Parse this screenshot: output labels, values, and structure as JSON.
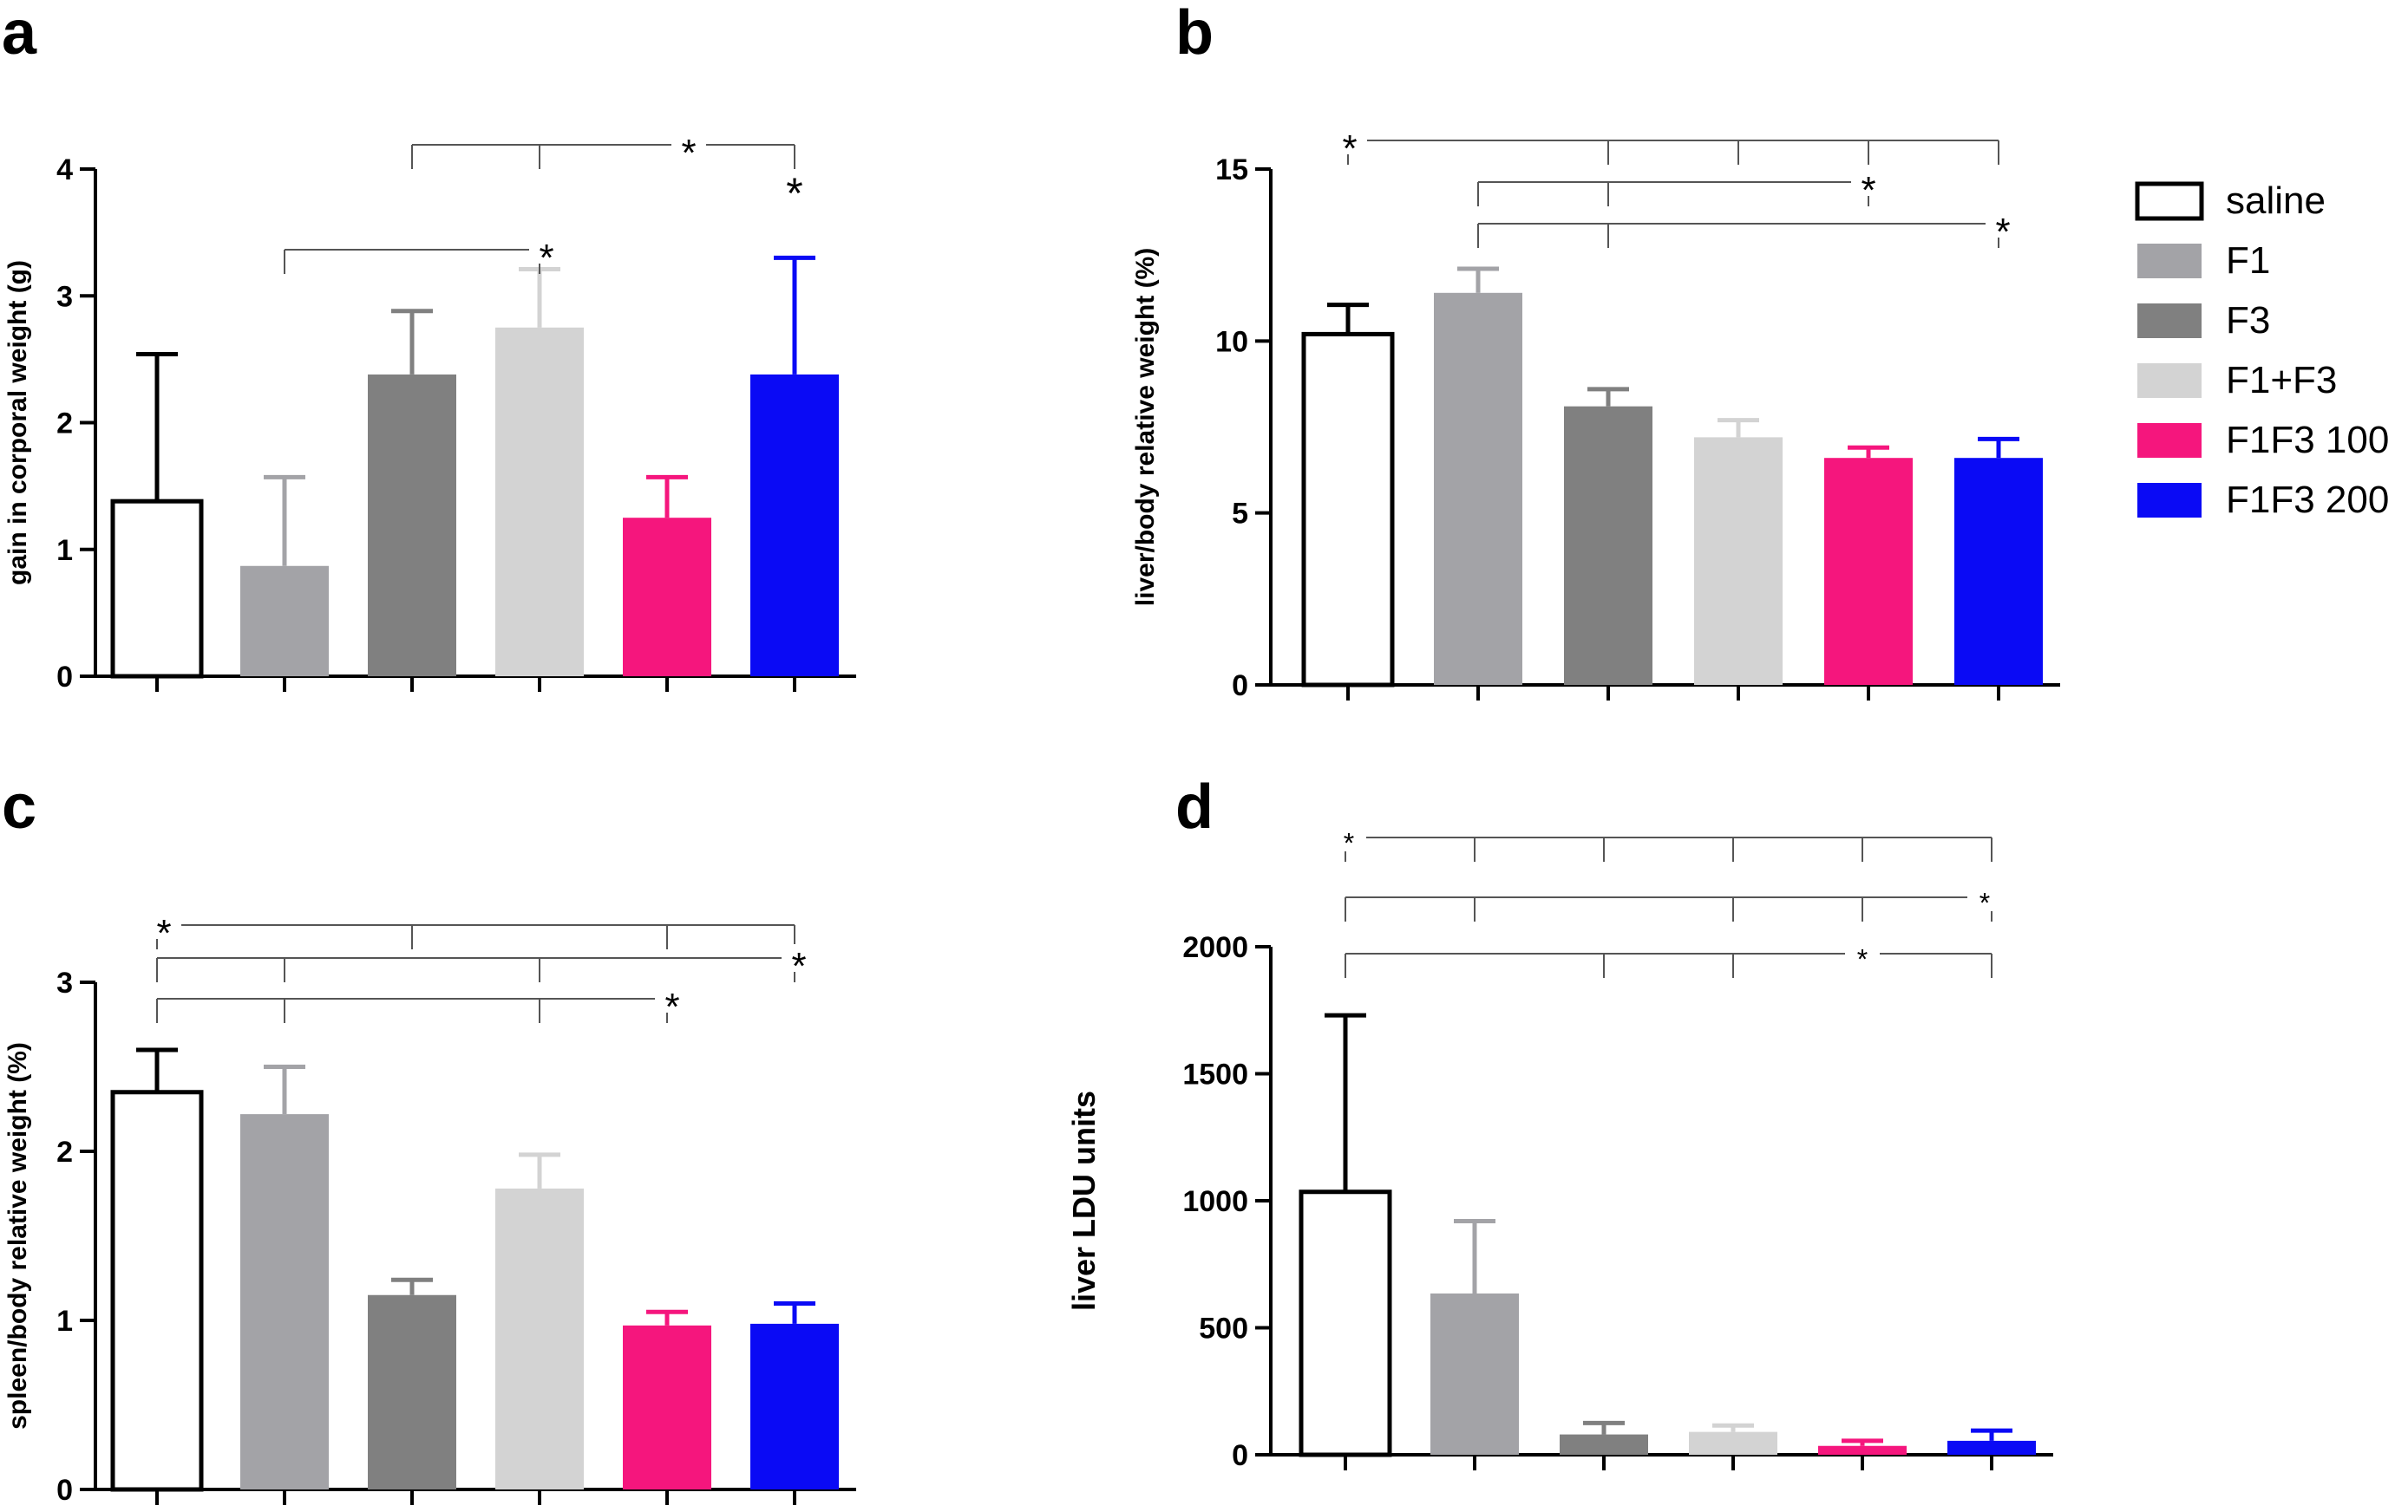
{
  "legend": {
    "entries": [
      {
        "label": "saline",
        "color": "#ffffff",
        "outline": "#000000"
      },
      {
        "label": "F1",
        "color": "#a3a3a7",
        "outline": "#a3a3a7"
      },
      {
        "label": "F3",
        "color": "#808080",
        "outline": "#808080"
      },
      {
        "label": "F1+F3",
        "color": "#d3d3d3",
        "outline": "#d3d3d3"
      },
      {
        "label": "F1F3 100",
        "color": "#f5167d",
        "outline": "#f5167d"
      },
      {
        "label": "F1F3 200",
        "color": "#0a0af5",
        "outline": "#0a0af5"
      }
    ]
  },
  "chart_data": [
    {
      "panel": "a",
      "type": "bar",
      "ylabel": "gain in corporal weight (g)",
      "ylim": [
        0,
        4
      ],
      "yticks": [
        0,
        1,
        2,
        3,
        4
      ],
      "categories": [
        "saline",
        "F1",
        "F3",
        "F1+F3",
        "F1F3 100",
        "F1F3 200"
      ],
      "values": [
        1.38,
        0.87,
        2.38,
        2.75,
        1.25,
        2.38
      ],
      "errors": [
        1.16,
        0.7,
        0.5,
        0.46,
        0.32,
        0.92
      ],
      "significance": [
        {
          "from": 1,
          "to": 3,
          "ticks": [],
          "label": "*"
        },
        {
          "from": 2,
          "to": 5,
          "ticks": [
            3
          ],
          "label": "*"
        },
        {
          "bar": 5,
          "label": "*"
        }
      ]
    },
    {
      "panel": "b",
      "type": "bar",
      "ylabel": "liver/body relative weight (%)",
      "ylim": [
        0,
        15
      ],
      "yticks": [
        0,
        5,
        10,
        15
      ],
      "categories": [
        "saline",
        "F1",
        "F3",
        "F1+F3",
        "F1F3 100",
        "F1F3 200"
      ],
      "values": [
        10.2,
        11.4,
        8.1,
        7.2,
        6.6,
        6.6
      ],
      "errors": [
        0.85,
        0.7,
        0.5,
        0.5,
        0.3,
        0.55
      ],
      "significance": [
        {
          "from": 0,
          "to": 5,
          "ticks": [
            2,
            3,
            4
          ],
          "label": "*"
        },
        {
          "from": 1,
          "to": 4,
          "ticks": [
            2
          ],
          "label": "*"
        },
        {
          "from": 1,
          "to": 5,
          "ticks": [
            2
          ],
          "label": "*"
        }
      ]
    },
    {
      "panel": "c",
      "type": "bar",
      "ylabel": "spleen/body relative weight (%)",
      "ylim": [
        0,
        3
      ],
      "yticks": [
        0,
        1,
        2,
        3
      ],
      "categories": [
        "saline",
        "F1",
        "F3",
        "F1+F3",
        "F1F3 100",
        "F1F3 200"
      ],
      "values": [
        2.35,
        2.22,
        1.15,
        1.78,
        0.97,
        0.98
      ],
      "errors": [
        0.25,
        0.28,
        0.09,
        0.2,
        0.08,
        0.12
      ],
      "significance": [
        {
          "from": 0,
          "to": 5,
          "ticks": [
            2,
            4
          ],
          "label": "*"
        },
        {
          "from": 0,
          "to": 5,
          "ticks": [
            1,
            3
          ],
          "label": "*"
        },
        {
          "from": 0,
          "to": 4,
          "ticks": [
            1,
            3
          ],
          "label": "*"
        }
      ]
    },
    {
      "panel": "d",
      "type": "bar",
      "ylabel": "liver LDU units",
      "ylim": [
        0,
        2000
      ],
      "yticks": [
        0,
        500,
        1000,
        1500,
        2000
      ],
      "categories": [
        "saline",
        "F1",
        "F3",
        "F1+F3",
        "F1F3 100",
        "F1F3 200"
      ],
      "values": [
        1035,
        635,
        80,
        90,
        35,
        55
      ],
      "errors": [
        695,
        285,
        45,
        25,
        20,
        40
      ],
      "significance": [
        {
          "from": 0,
          "to": 5,
          "ticks": [
            1,
            2,
            3,
            4
          ],
          "label": "*"
        },
        {
          "from": 0,
          "to": 5,
          "ticks": [
            1,
            3,
            4
          ],
          "label": "*"
        },
        {
          "from": 0,
          "to": 5,
          "ticks": [
            2,
            3
          ],
          "label": "*"
        }
      ]
    }
  ]
}
